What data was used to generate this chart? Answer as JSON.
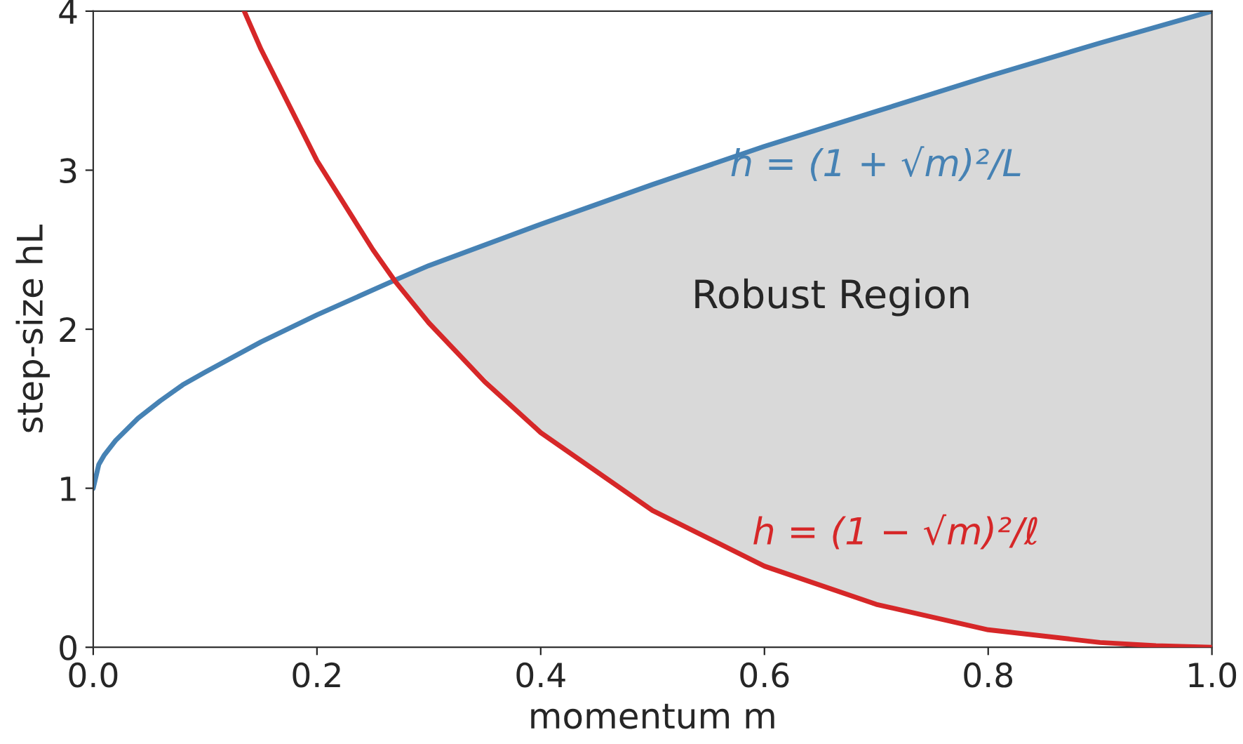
{
  "chart_data": {
    "type": "line",
    "xlabel": "momentum m",
    "ylabel": "step-size hL",
    "xlim": [
      0,
      1
    ],
    "ylim": [
      0,
      4
    ],
    "xticks": [
      {
        "value": 0,
        "label": "0.0"
      },
      {
        "value": 0.2,
        "label": "0.2"
      },
      {
        "value": 0.4,
        "label": "0.4"
      },
      {
        "value": 0.6,
        "label": "0.6"
      },
      {
        "value": 0.8,
        "label": "0.8"
      },
      {
        "value": 1,
        "label": "1.0"
      }
    ],
    "yticks": [
      0,
      1,
      2,
      3,
      4
    ],
    "annotations": [
      "Robust Region"
    ],
    "series": [
      {
        "type": "area",
        "color": "#d9d9d9",
        "x": [
          0.27,
          0.3,
          0.4,
          0.5,
          0.6,
          0.7,
          0.8,
          0.9,
          1.0
        ],
        "values": [
          2.31,
          2.4,
          2.66,
          2.91,
          3.15,
          3.37,
          3.59,
          3.8,
          4.0
        ]
      },
      {
        "name": "h = (1 + √m)²/L",
        "color": "#4682b4",
        "x": [
          0,
          0.005,
          0.01,
          0.02,
          0.04,
          0.06,
          0.08,
          0.1,
          0.15,
          0.2,
          0.27,
          0.3,
          0.4,
          0.5,
          0.6,
          0.7,
          0.8,
          0.9,
          1.0
        ],
        "values": [
          1.0,
          1.15,
          1.21,
          1.3,
          1.44,
          1.55,
          1.65,
          1.73,
          1.92,
          2.09,
          2.31,
          2.4,
          2.66,
          2.91,
          3.15,
          3.37,
          3.59,
          3.8,
          4.0
        ]
      },
      {
        "name": "h = (1 − √m)²/ℓ",
        "color": "#d62728",
        "x": [
          0.135,
          0.15,
          0.2,
          0.25,
          0.27,
          0.3,
          0.35,
          0.4,
          0.5,
          0.6,
          0.7,
          0.8,
          0.9,
          0.95,
          1.0
        ],
        "values": [
          4.0,
          3.76,
          3.06,
          2.5,
          2.3,
          2.04,
          1.67,
          1.35,
          0.86,
          0.51,
          0.27,
          0.11,
          0.03,
          0.01,
          0
        ]
      }
    ]
  }
}
